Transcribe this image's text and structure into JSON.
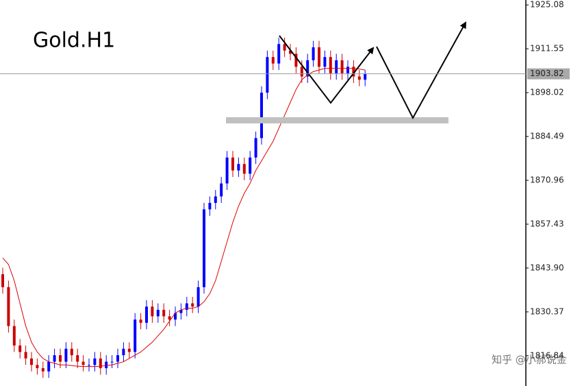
{
  "chart_data": {
    "type": "candlestick",
    "title": "Gold.H1",
    "open": [
      1842,
      1838,
      1826,
      1820,
      1818,
      1816,
      1814,
      1813,
      1812,
      1815,
      1817,
      1815,
      1819,
      1817,
      1815,
      1814,
      1814,
      1816,
      1813,
      1815,
      1815,
      1817,
      1819,
      1818,
      1828,
      1827,
      1832,
      1829,
      1831,
      1829,
      1828,
      1830,
      1831,
      1833,
      1832,
      1838,
      1862,
      1864,
      1866,
      1870,
      1878,
      1874,
      1876,
      1873,
      1878,
      1884,
      1898,
      1909,
      1907,
      1913,
      1911,
      1910,
      1906,
      1903,
      1908,
      1912,
      1906,
      1909,
      1904,
      1908,
      1904,
      1906,
      1903,
      1902
    ],
    "high": [
      1844,
      1840,
      1828,
      1822,
      1820,
      1818,
      1816,
      1815,
      1817,
      1819,
      1819,
      1821,
      1821,
      1819,
      1817,
      1816,
      1818,
      1818,
      1817,
      1817,
      1819,
      1821,
      1821,
      1830,
      1830,
      1834,
      1834,
      1833,
      1833,
      1831,
      1832,
      1833,
      1835,
      1835,
      1840,
      1864,
      1866,
      1868,
      1872,
      1880,
      1880,
      1878,
      1878,
      1880,
      1886,
      1900,
      1911,
      1911,
      1915,
      1915,
      1913,
      1912,
      1908,
      1910,
      1914,
      1914,
      1911,
      1911,
      1910,
      1910,
      1908,
      1908,
      1905,
      1905
    ],
    "low": [
      1836,
      1824,
      1818,
      1816,
      1814,
      1812,
      1811,
      1810,
      1810,
      1813,
      1813,
      1813,
      1815,
      1813,
      1812,
      1812,
      1812,
      1811,
      1811,
      1813,
      1813,
      1815,
      1816,
      1816,
      1825,
      1825,
      1827,
      1827,
      1827,
      1826,
      1826,
      1828,
      1829,
      1830,
      1830,
      1836,
      1860,
      1862,
      1864,
      1868,
      1872,
      1872,
      1871,
      1871,
      1876,
      1882,
      1896,
      1905,
      1905,
      1909,
      1908,
      1904,
      1901,
      1901,
      1906,
      1904,
      1904,
      1902,
      1902,
      1902,
      1902,
      1901,
      1900,
      1900
    ],
    "close": [
      1838,
      1826,
      1820,
      1818,
      1816,
      1814,
      1813,
      1812,
      1815,
      1817,
      1815,
      1819,
      1817,
      1815,
      1814,
      1814,
      1816,
      1813,
      1815,
      1815,
      1817,
      1819,
      1818,
      1828,
      1827,
      1832,
      1829,
      1831,
      1829,
      1828,
      1830,
      1831,
      1833,
      1832,
      1838,
      1862,
      1864,
      1866,
      1870,
      1878,
      1874,
      1876,
      1873,
      1878,
      1884,
      1898,
      1909,
      1907,
      1913,
      1911,
      1910,
      1906,
      1903,
      1908,
      1912,
      1906,
      1909,
      1904,
      1908,
      1904,
      1906,
      1903,
      1902,
      1903.82
    ],
    "up_color": "#0000ff",
    "down_color": "#cc0000",
    "ma": {
      "color": "#dd0000",
      "values": [
        1847,
        1845,
        1840,
        1833,
        1826,
        1821,
        1818,
        1816,
        1815,
        1814.5,
        1814,
        1814,
        1813.8,
        1813.6,
        1813.5,
        1813.5,
        1813.5,
        1813.6,
        1813.8,
        1814,
        1814.5,
        1815,
        1816,
        1817,
        1818,
        1819.5,
        1821,
        1823,
        1825,
        1827.5,
        1830,
        1831,
        1831.5,
        1831.5,
        1832,
        1833.5,
        1836,
        1840,
        1846,
        1852,
        1858,
        1863,
        1867,
        1870,
        1874,
        1877,
        1880,
        1883,
        1887,
        1891,
        1895,
        1899,
        1902,
        1903.5,
        1904.5,
        1905,
        1905.5,
        1905.5,
        1905.5,
        1905.5,
        1905.5,
        1905.5,
        1905.3,
        1905
      ]
    },
    "last_price": 1903.82,
    "ylim": [
      1807.5,
      1926.6
    ],
    "yticks": [
      1925.08,
      1911.55,
      1898.02,
      1884.49,
      1870.96,
      1857.43,
      {
        "value": 1843.9,
        "label": "1843.90"
      },
      1830.37,
      1816.84
    ],
    "watermark": "知乎 @小郝说金"
  }
}
